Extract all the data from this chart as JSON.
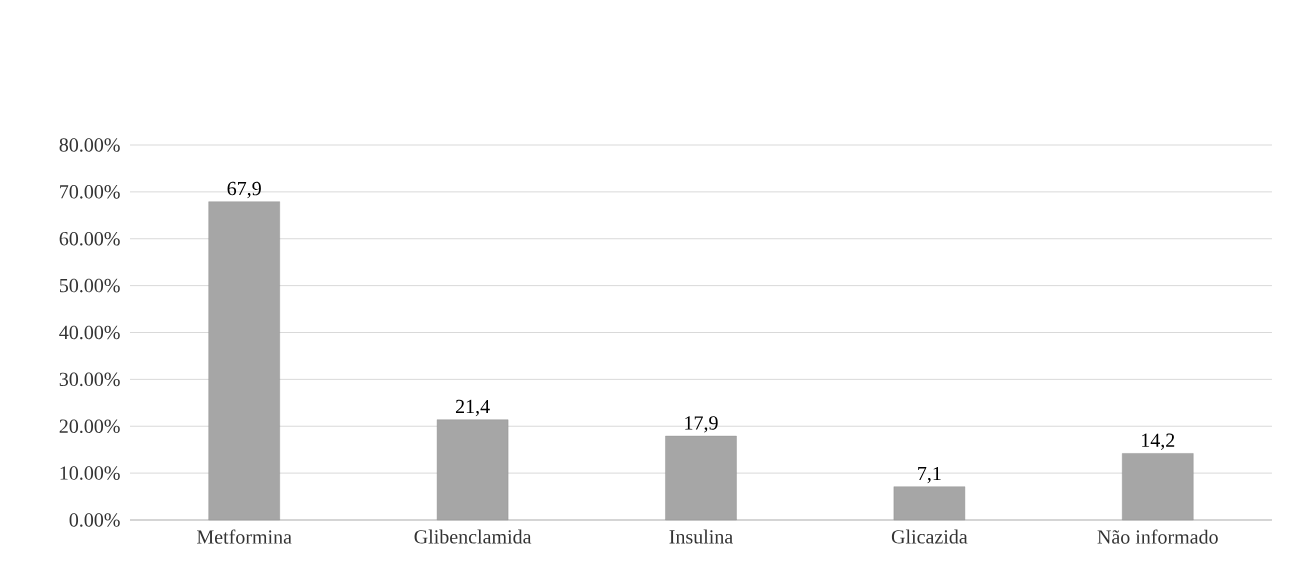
{
  "chart_data": {
    "type": "bar",
    "categories": [
      "Metformina",
      "Glibenclamida",
      "Insulina",
      "Glicazida",
      "Não informado"
    ],
    "values": [
      67.9,
      21.4,
      17.9,
      7.1,
      14.2
    ],
    "value_labels": [
      "67,9",
      "21,4",
      "17,9",
      "7,1",
      "14,2"
    ],
    "color": "#a6a6a6",
    "ylim": [
      0,
      80
    ],
    "yticks": [
      {
        "value": 0,
        "label": "0.00%"
      },
      {
        "value": 10,
        "label": "10.00%"
      },
      {
        "value": 20,
        "label": "20.00%"
      },
      {
        "value": 30,
        "label": "30.00%"
      },
      {
        "value": 40,
        "label": "40.00%"
      },
      {
        "value": 50,
        "label": "50.00%"
      },
      {
        "value": 60,
        "label": "60.00%"
      },
      {
        "value": 70,
        "label": "70.00%"
      },
      {
        "value": 80,
        "label": "80.00%"
      }
    ],
    "grid": "y"
  }
}
